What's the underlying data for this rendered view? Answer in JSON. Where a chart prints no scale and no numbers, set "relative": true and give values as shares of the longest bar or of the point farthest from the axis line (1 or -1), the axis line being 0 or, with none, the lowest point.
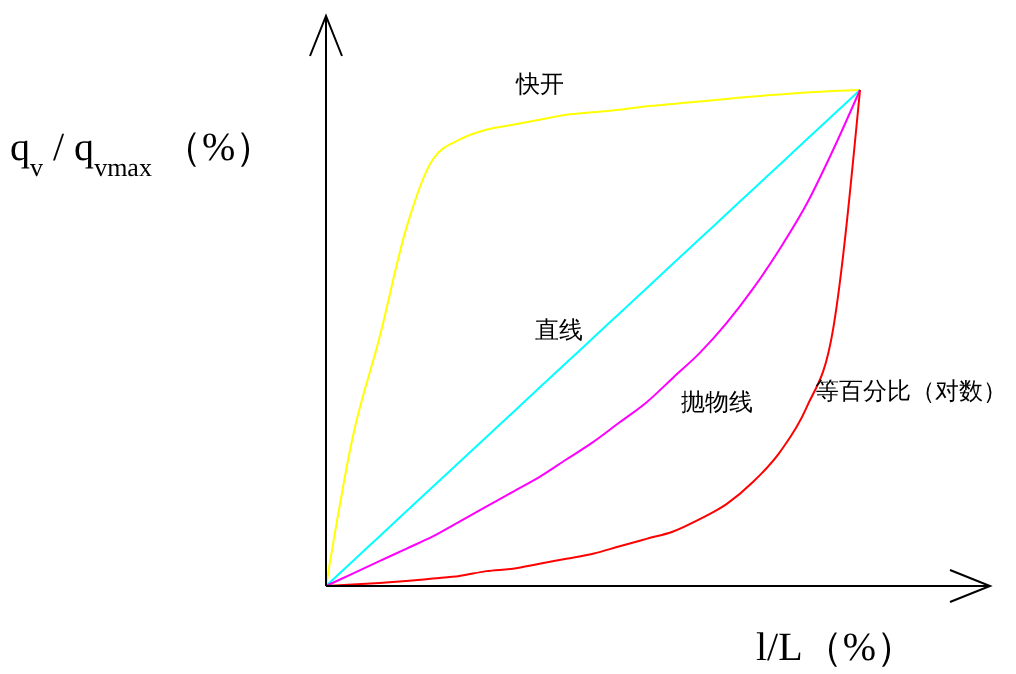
{
  "chart_data": {
    "type": "line",
    "relative": true,
    "xlabel": "l/L（%）",
    "ylabel": "q$_{v}$ / q$_{vmax}$ （%）",
    "marker": "none",
    "line_style": "solid",
    "categories": [
      null,
      null,
      null,
      null,
      null,
      null,
      null,
      null,
      null,
      null,
      null,
      null,
      null,
      null,
      null,
      null,
      null,
      null,
      null,
      null,
      null
    ],
    "series": [
      {
        "name": "快开",
        "color": "#ffff00",
        "values": [
          0,
          0.3,
          0.5,
          0.72,
          0.86,
          0.9,
          0.92,
          0.93,
          0.94,
          0.95,
          0.955,
          0.96,
          0.967,
          0.972,
          0.977,
          0.982,
          0.987,
          0.991,
          0.995,
          0.998,
          1
        ]
      },
      {
        "name": "直线",
        "color": "#00ffff",
        "values": [
          0,
          0.05,
          0.1,
          0.15,
          0.2,
          0.25,
          0.3,
          0.35,
          0.4,
          0.45,
          0.5,
          0.55,
          0.6,
          0.65,
          0.7,
          0.75,
          0.8,
          0.85,
          0.9,
          0.95,
          1
        ]
      },
      {
        "name": "抛物线",
        "color": "#ff00ff",
        "values": [
          0,
          0.025,
          0.05,
          0.075,
          0.1,
          0.13,
          0.16,
          0.19,
          0.22,
          0.255,
          0.29,
          0.33,
          0.37,
          0.42,
          0.47,
          0.53,
          0.6,
          0.68,
          0.77,
          0.88,
          1
        ]
      },
      {
        "name": "等百分比（对数）",
        "color": "#ff0000",
        "values": [
          0,
          0.003,
          0.006,
          0.01,
          0.015,
          0.02,
          0.03,
          0.035,
          0.045,
          0.055,
          0.065,
          0.08,
          0.095,
          0.11,
          0.135,
          0.165,
          0.21,
          0.27,
          0.36,
          0.52,
          1
        ]
      }
    ]
  }
}
